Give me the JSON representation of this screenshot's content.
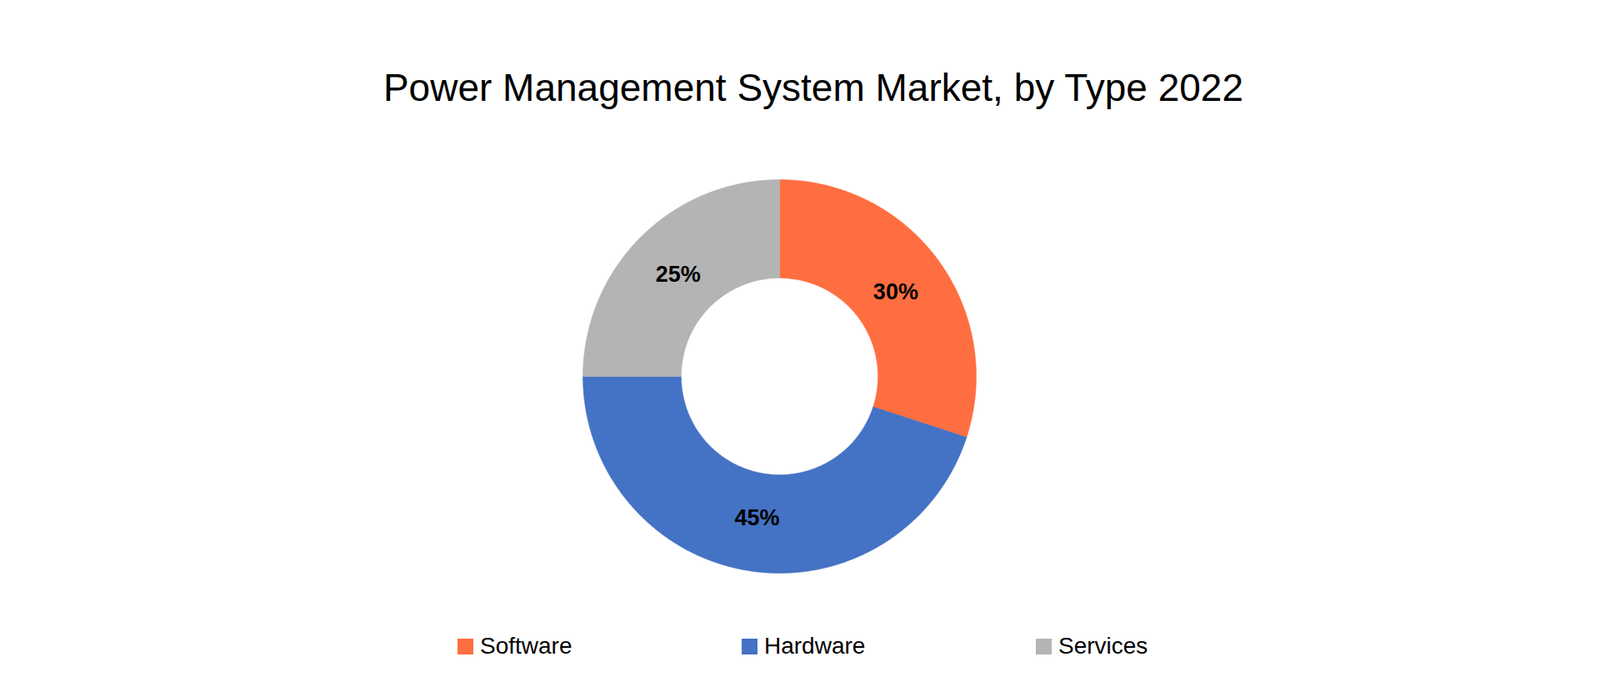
{
  "chart_data": {
    "type": "donut",
    "title": "Power Management System Market, by Type 2022",
    "categories": [
      "Software",
      "Hardware",
      "Services"
    ],
    "values": [
      30,
      45,
      25
    ],
    "value_labels": [
      "30%",
      "45%",
      "25%"
    ],
    "colors": [
      "#ff6e40",
      "#4472c4",
      "#b4b4b4"
    ],
    "data_labels": true,
    "legend": "bottom"
  }
}
